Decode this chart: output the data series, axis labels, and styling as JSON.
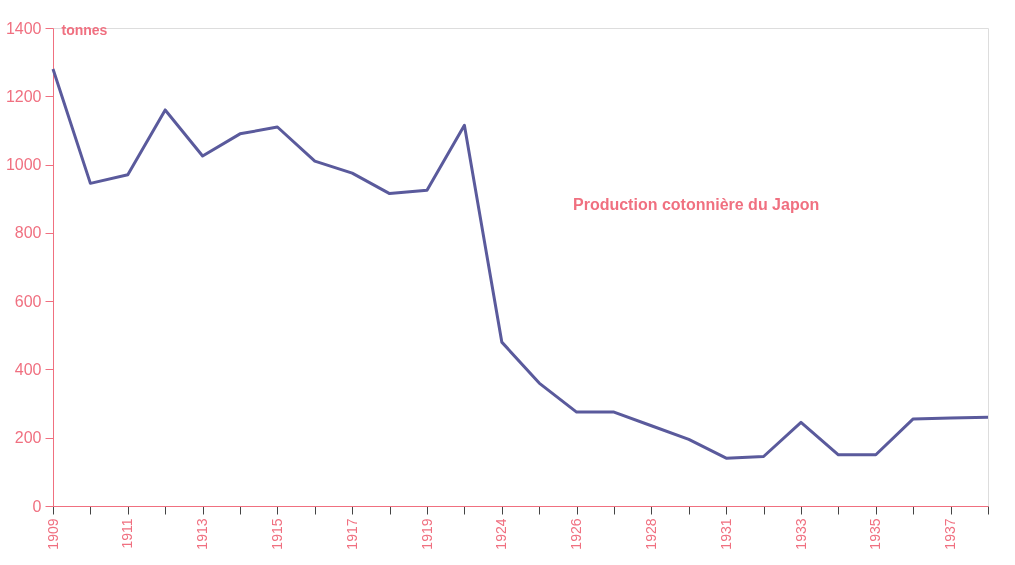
{
  "chart_data": {
    "type": "line",
    "annotations": [
      "Production cotonnière du Japon"
    ],
    "ylabel": "tonnes",
    "categories": [
      "1909",
      null,
      "1911",
      null,
      "1913",
      null,
      "1915",
      null,
      "1917",
      null,
      "1919",
      null,
      "1924",
      null,
      "1926",
      null,
      "1928",
      null,
      "1931",
      null,
      "1933",
      null,
      "1935",
      null,
      "1937",
      null
    ],
    "series": [
      {
        "color": "#5a5a9c",
        "values": [
          1280,
          945,
          970,
          1160,
          1025,
          1090,
          1110,
          1010,
          975,
          915,
          925,
          1115,
          480,
          360,
          275,
          275,
          235,
          195,
          140,
          145,
          245,
          150,
          150,
          255,
          258,
          260
        ]
      }
    ],
    "ylim": [
      0,
      1400
    ],
    "yticks": [
      0,
      200,
      400,
      600,
      800,
      1000,
      1200,
      1400
    ],
    "grid": false,
    "marker": "none",
    "line_style": "solid"
  }
}
